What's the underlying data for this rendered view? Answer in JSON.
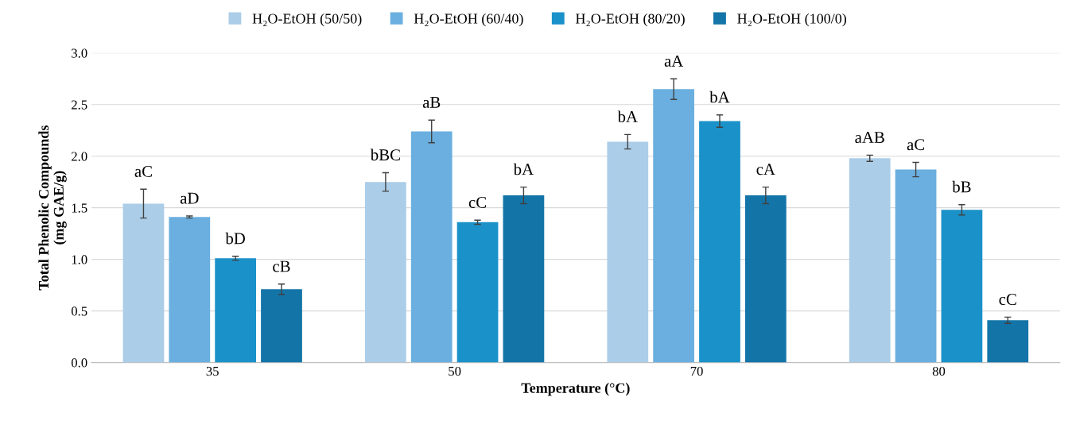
{
  "chart_data": {
    "type": "bar",
    "xlabel": "Temperature (°C)",
    "ylabel": "Total Phenolic Compounds\n(mg GAE/g)",
    "categories": [
      "35",
      "50",
      "70",
      "80"
    ],
    "series": [
      {
        "name": "H₂O-EtOH (50/50)",
        "color": "#abcde8",
        "values": [
          1.54,
          1.75,
          2.14,
          1.98
        ],
        "errors": [
          0.14,
          0.09,
          0.07,
          0.03
        ],
        "value_labels": [
          "aC",
          "bBC",
          "bA",
          "aAB"
        ]
      },
      {
        "name": "H₂O-EtOH (60/40)",
        "color": "#6aafdf",
        "values": [
          1.41,
          2.24,
          2.65,
          1.87
        ],
        "errors": [
          0.01,
          0.11,
          0.1,
          0.07
        ],
        "value_labels": [
          "aD",
          "aB",
          "aA",
          "aC"
        ]
      },
      {
        "name": "H₂O-EtOH (80/20)",
        "color": "#1b91c9",
        "values": [
          1.01,
          1.36,
          2.34,
          1.48
        ],
        "errors": [
          0.02,
          0.02,
          0.06,
          0.05
        ],
        "value_labels": [
          "bD",
          "cC",
          "bA",
          "bB"
        ]
      },
      {
        "name": "H₂O-EtOH (100/0)",
        "color": "#1374a8",
        "values": [
          0.71,
          1.62,
          1.62,
          0.41
        ],
        "errors": [
          0.05,
          0.08,
          0.08,
          0.03
        ],
        "value_labels": [
          "cB",
          "bA",
          "cA",
          "cC"
        ]
      }
    ],
    "ylim": [
      0,
      3.0
    ],
    "yticks": [
      {
        "value": 0,
        "label": "0.0"
      },
      {
        "value": 0.5,
        "label": "0.5"
      },
      {
        "value": 1.0,
        "label": "1.0"
      },
      {
        "value": 1.5,
        "label": "1.5"
      },
      {
        "value": 2.0,
        "label": "2.0"
      },
      {
        "value": 2.5,
        "label": "2.5"
      },
      {
        "value": 3.0,
        "label": "3.0"
      }
    ],
    "grid": "y",
    "legend": "top"
  }
}
